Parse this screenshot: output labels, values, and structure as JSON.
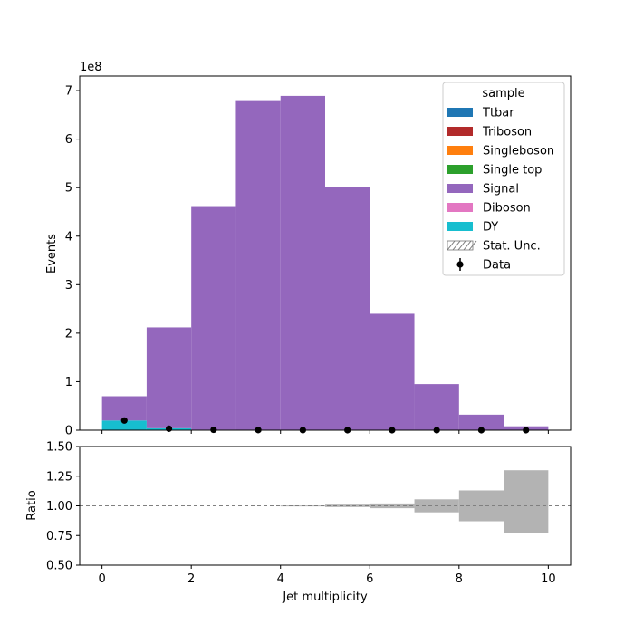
{
  "chart_data": [
    {
      "type": "bar",
      "subtype": "stacked-step-histogram",
      "title": "",
      "xlabel": "",
      "ylabel": "Events",
      "scale_label": "1e8",
      "y_unit": 100000000,
      "xlim": [
        -0.5,
        10.5
      ],
      "ylim": [
        0,
        7.3
      ],
      "x_ticks": [
        0,
        2,
        4,
        6,
        8,
        10
      ],
      "y_ticks": [
        0,
        1,
        2,
        3,
        4,
        5,
        6,
        7
      ],
      "bin_edges": [
        0,
        1,
        2,
        3,
        4,
        5,
        6,
        7,
        8,
        9,
        10
      ],
      "legend": {
        "title": "sample",
        "placement": "top-right",
        "entries": [
          {
            "label": "Ttbar",
            "color": "#1f77b4",
            "kind": "patch"
          },
          {
            "label": "Triboson",
            "color": "#b22a2a",
            "kind": "patch"
          },
          {
            "label": "Singleboson",
            "color": "#ff7f0e",
            "kind": "patch"
          },
          {
            "label": "Single top",
            "color": "#2ca02c",
            "kind": "patch"
          },
          {
            "label": "Signal",
            "color": "#9467bd",
            "kind": "patch"
          },
          {
            "label": "Diboson",
            "color": "#e377c2",
            "kind": "patch"
          },
          {
            "label": "DY",
            "color": "#17becf",
            "kind": "patch"
          },
          {
            "label": "Stat. Unc.",
            "color": "#777777",
            "kind": "hatch"
          },
          {
            "label": "Data",
            "color": "#000000",
            "kind": "errorbar"
          }
        ]
      },
      "series": [
        {
          "name": "DY",
          "color": "#17becf",
          "values": [
            0.2,
            0.04,
            0.01,
            0.003,
            0.001,
            0.0005,
            0.0002,
            0.0001,
            5e-05,
            2e-05
          ]
        },
        {
          "name": "Diboson",
          "color": "#e377c2",
          "values": [
            0,
            0,
            0,
            0,
            0,
            0,
            0,
            0,
            0,
            0
          ]
        },
        {
          "name": "Signal",
          "color": "#9467bd",
          "values": [
            0.5,
            2.08,
            4.61,
            6.8,
            6.89,
            5.02,
            2.4,
            0.95,
            0.32,
            0.08
          ]
        },
        {
          "name": "Single top",
          "color": "#2ca02c",
          "values": [
            0,
            0,
            0,
            0,
            0,
            0,
            0,
            0,
            0,
            0
          ]
        },
        {
          "name": "Singleboson",
          "color": "#ff7f0e",
          "values": [
            0,
            0,
            0,
            0,
            0,
            0,
            0,
            0,
            0,
            0
          ]
        },
        {
          "name": "Triboson",
          "color": "#b22a2a",
          "values": [
            0,
            0,
            0,
            0,
            0,
            0,
            0,
            0,
            0,
            0
          ]
        },
        {
          "name": "Ttbar",
          "color": "#1f77b4",
          "values": [
            0,
            0,
            0,
            0,
            0,
            0,
            0,
            0,
            0,
            0
          ]
        }
      ],
      "data_points": {
        "name": "Data",
        "x": [
          0.5,
          1.5,
          2.5,
          3.5,
          4.5,
          5.5,
          6.5,
          7.5,
          8.5,
          9.5
        ],
        "y": [
          0.2,
          0.03,
          0.008,
          0.003,
          0.001,
          0.0005,
          0.0002,
          0.0001,
          5e-05,
          2e-05
        ]
      }
    },
    {
      "type": "bar",
      "subtype": "ratio-uncertainty-band",
      "title": "",
      "xlabel": "Jet multiplicity",
      "ylabel": "Ratio",
      "xlim": [
        -0.5,
        10.5
      ],
      "ylim": [
        0.5,
        1.5
      ],
      "x_ticks": [
        0,
        2,
        4,
        6,
        8,
        10
      ],
      "y_ticks": [
        0.5,
        0.75,
        1.0,
        1.25,
        1.5
      ],
      "y_tick_labels": [
        "0.50",
        "0.75",
        "1.00",
        "1.25",
        "1.50"
      ],
      "bin_edges": [
        0,
        1,
        2,
        3,
        4,
        5,
        6,
        7,
        8,
        9,
        10
      ],
      "band_color": "#b3b3b3",
      "band_low": [
        1,
        1,
        1,
        1,
        0.997,
        0.99,
        0.98,
        0.945,
        0.87,
        0.77
      ],
      "band_high": [
        1,
        1,
        1,
        1,
        1.003,
        1.01,
        1.02,
        1.055,
        1.13,
        1.3
      ],
      "reference_line": 1.0
    }
  ]
}
